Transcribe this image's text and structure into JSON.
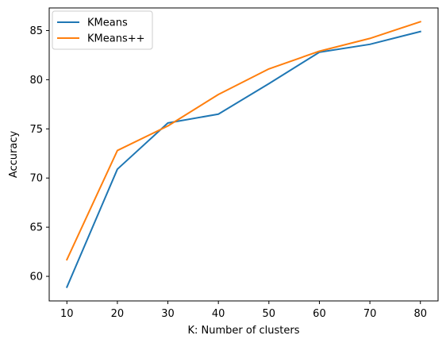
{
  "chart_data": {
    "type": "line",
    "title": "",
    "xlabel": "K: Number of clusters",
    "ylabel": "Accuracy",
    "x": [
      10,
      20,
      30,
      40,
      50,
      60,
      70,
      80
    ],
    "xlim": [
      6.5,
      83.5
    ],
    "ylim": [
      57.5,
      87.3
    ],
    "xticks": [
      10,
      20,
      30,
      40,
      50,
      60,
      70,
      80
    ],
    "yticks": [
      60,
      65,
      70,
      75,
      80,
      85
    ],
    "grid": false,
    "legend_position": "top-left",
    "series": [
      {
        "name": "KMeans",
        "color": "#1f77b4",
        "values": [
          58.9,
          70.9,
          75.6,
          76.5,
          79.6,
          82.8,
          83.6,
          84.9
        ]
      },
      {
        "name": "KMeans++",
        "color": "#ff7f0e",
        "values": [
          61.7,
          72.8,
          75.3,
          78.5,
          81.1,
          82.9,
          84.2,
          85.9
        ]
      }
    ]
  }
}
